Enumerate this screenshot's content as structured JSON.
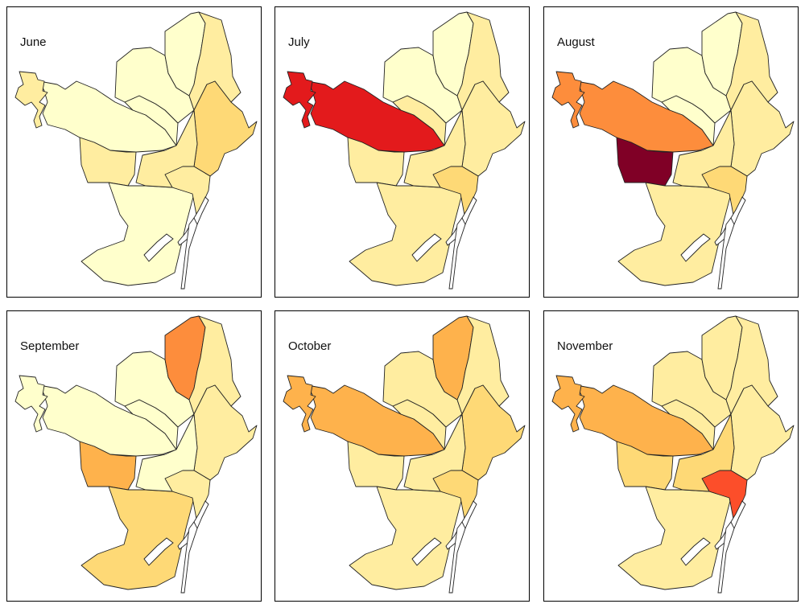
{
  "palette": [
    "#FFFFCC",
    "#FFEDA0",
    "#FED976",
    "#FEB24C",
    "#FD8D3C",
    "#FC4E2A",
    "#E31A1C",
    "#800026"
  ],
  "district_names": [
    "port_west",
    "sants_montjuic",
    "les_corts",
    "sarria_sant_gervasi",
    "gracia",
    "horta_guinardo",
    "nou_barris",
    "sant_andreu",
    "sant_marti",
    "eixample",
    "ciutat_vella"
  ],
  "panels": [
    {
      "title": "June",
      "levels": {
        "port_west": 1,
        "sants_montjuic": 0,
        "les_corts": 1,
        "sarria_sant_gervasi": 0,
        "gracia": 0,
        "horta_guinardo": 0,
        "nou_barris": 0,
        "sant_andreu": 1,
        "sant_marti": 2,
        "eixample": 1,
        "ciutat_vella": 1
      }
    },
    {
      "title": "July",
      "levels": {
        "port_west": 6,
        "sants_montjuic": 1,
        "les_corts": 1,
        "sarria_sant_gervasi": 6,
        "gracia": 1,
        "horta_guinardo": 0,
        "nou_barris": 0,
        "sant_andreu": 1,
        "sant_marti": 1,
        "eixample": 1,
        "ciutat_vella": 2
      }
    },
    {
      "title": "August",
      "levels": {
        "port_west": 4,
        "sants_montjuic": 1,
        "les_corts": 7,
        "sarria_sant_gervasi": 4,
        "gracia": 0,
        "horta_guinardo": 0,
        "nou_barris": 0,
        "sant_andreu": 1,
        "sant_marti": 1,
        "eixample": 1,
        "ciutat_vella": 2
      }
    },
    {
      "title": "September",
      "levels": {
        "port_west": 0,
        "sants_montjuic": 2,
        "les_corts": 3,
        "sarria_sant_gervasi": 0,
        "gracia": 0,
        "horta_guinardo": 0,
        "nou_barris": 4,
        "sant_andreu": 1,
        "sant_marti": 1,
        "eixample": 0,
        "ciutat_vella": 1
      }
    },
    {
      "title": "October",
      "levels": {
        "port_west": 3,
        "sants_montjuic": 1,
        "les_corts": 1,
        "sarria_sant_gervasi": 3,
        "gracia": 1,
        "horta_guinardo": 1,
        "nou_barris": 3,
        "sant_andreu": 1,
        "sant_marti": 2,
        "eixample": 1,
        "ciutat_vella": 2
      }
    },
    {
      "title": "November",
      "levels": {
        "port_west": 3,
        "sants_montjuic": 1,
        "les_corts": 2,
        "sarria_sant_gervasi": 3,
        "gracia": 1,
        "horta_guinardo": 1,
        "nou_barris": 1,
        "sant_andreu": 1,
        "sant_marti": 1,
        "eixample": 2,
        "ciutat_vella": 5
      }
    }
  ]
}
